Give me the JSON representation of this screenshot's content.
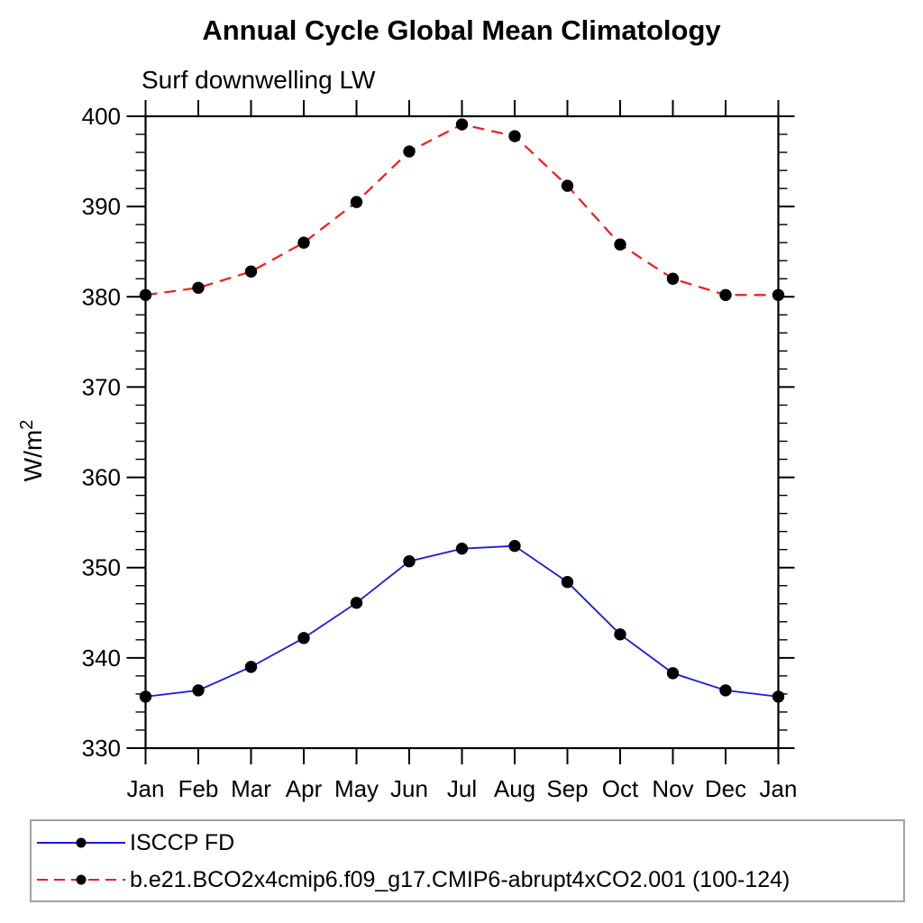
{
  "page": {
    "title": "Annual Cycle Global Mean Climatology",
    "subtitle": "Surf downwelling LW"
  },
  "chart_data": {
    "type": "line",
    "title": "Annual Cycle Global Mean Climatology",
    "subtitle": "Surf downwelling LW",
    "xlabel": "",
    "ylabel": "W/m²",
    "categories": [
      "Jan",
      "Feb",
      "Mar",
      "Apr",
      "May",
      "Jun",
      "Jul",
      "Aug",
      "Sep",
      "Oct",
      "Nov",
      "Dec",
      "Jan"
    ],
    "ylim": [
      330,
      400
    ],
    "ytick_major": 10,
    "ytick_minor": 2,
    "grid": false,
    "legend_position": "bottom",
    "axis_color": "#000000",
    "series": [
      {
        "name": "ISCCP FD",
        "color": "#1a1ae0",
        "line_style": "solid",
        "marker": "circle",
        "marker_color": "#000000",
        "values": [
          335.7,
          336.4,
          339.0,
          342.2,
          346.1,
          350.7,
          352.1,
          352.4,
          348.4,
          342.6,
          338.3,
          336.4,
          335.7
        ]
      },
      {
        "name": "b.e21.BCO2x4cmip6.f09_g17.CMIP6-abrupt4xCO2.001 (100-124)",
        "color": "#ee1c1c",
        "line_style": "dashed",
        "marker": "circle",
        "marker_color": "#000000",
        "values": [
          380.2,
          381.0,
          382.8,
          386.0,
          390.5,
          396.1,
          399.1,
          397.8,
          392.3,
          385.8,
          382.0,
          380.2,
          380.2
        ]
      }
    ]
  }
}
